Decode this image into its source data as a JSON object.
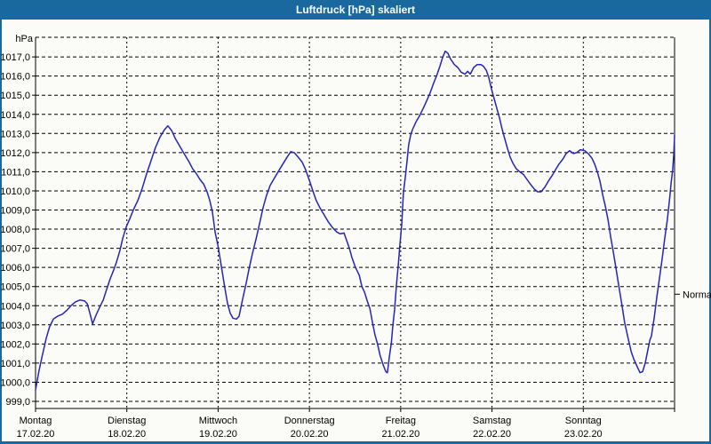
{
  "window": {
    "title": "Luftdruck [hPa] skaliert"
  },
  "colors": {
    "titlebar_bg": "#19699e",
    "window_border": "#19699e",
    "title_text": "#ffffff",
    "line": "#2424be",
    "grid": "#000000",
    "text": "#000000",
    "bg": "#fbfbf7"
  },
  "chart_data": {
    "type": "line",
    "title": "Luftdruck [hPa] skaliert",
    "ylabel": "hPa",
    "xlabel": "",
    "grid": true,
    "legend_position": "none",
    "y_axis": {
      "min": 999.0,
      "max": 1017.0,
      "step": 1.0,
      "tick_labels": [
        "999,0",
        "1000,0",
        "1001,0",
        "1002,0",
        "1003,0",
        "1004,0",
        "1005,0",
        "1006,0",
        "1007,0",
        "1008,0",
        "1009,0",
        "1010,0",
        "1011,0",
        "1012,0",
        "1013,0",
        "1014,0",
        "1015,0",
        "1016,0",
        "1017,0"
      ]
    },
    "x_axis": {
      "total_hours": 168,
      "hours_per_day": 24,
      "days": [
        {
          "name": "Montag",
          "date": "17.02.20"
        },
        {
          "name": "Dienstag",
          "date": "18.02.20"
        },
        {
          "name": "Mittwoch",
          "date": "19.02.20"
        },
        {
          "name": "Donnerstag",
          "date": "20.02.20"
        },
        {
          "name": "Freitag",
          "date": "21.02.20"
        },
        {
          "name": "Samstag",
          "date": "22.02.20"
        },
        {
          "name": "Sonntag",
          "date": "23.02.20"
        }
      ]
    },
    "normal_marker": {
      "label": "Normal",
      "value_hpa": 1004.6
    },
    "series": [
      {
        "name": "Luftdruck",
        "unit": "hPa",
        "points": [
          [
            0,
            999.6
          ],
          [
            0.9,
            1000.6
          ],
          [
            1.9,
            1001.5
          ],
          [
            2.8,
            1002.3
          ],
          [
            3.7,
            1002.9
          ],
          [
            4.7,
            1003.3
          ],
          [
            5.8,
            1003.45
          ],
          [
            7,
            1003.55
          ],
          [
            8.2,
            1003.75
          ],
          [
            9.3,
            1004
          ],
          [
            10.5,
            1004.2
          ],
          [
            11.7,
            1004.3
          ],
          [
            12.9,
            1004.25
          ],
          [
            13.6,
            1004.1
          ],
          [
            14.3,
            1003.6
          ],
          [
            15,
            1003.05
          ],
          [
            15.9,
            1003.5
          ],
          [
            16.8,
            1003.9
          ],
          [
            17.8,
            1004.3
          ],
          [
            18.7,
            1004.85
          ],
          [
            19.6,
            1005.4
          ],
          [
            20.6,
            1005.9
          ],
          [
            21.3,
            1006.3
          ],
          [
            22.2,
            1006.9
          ],
          [
            22.9,
            1007.5
          ],
          [
            23.8,
            1008.1
          ],
          [
            24.8,
            1008.55
          ],
          [
            25.7,
            1009
          ],
          [
            26.9,
            1009.5
          ],
          [
            28,
            1010.1
          ],
          [
            29.2,
            1010.9
          ],
          [
            30.4,
            1011.6
          ],
          [
            31.5,
            1012.25
          ],
          [
            32.7,
            1012.8
          ],
          [
            33.9,
            1013.2
          ],
          [
            34.8,
            1013.4
          ],
          [
            35.8,
            1013.15
          ],
          [
            36.7,
            1012.75
          ],
          [
            37.6,
            1012.45
          ],
          [
            38.6,
            1012.1
          ],
          [
            39.5,
            1011.8
          ],
          [
            40.4,
            1011.5
          ],
          [
            41.3,
            1011.15
          ],
          [
            42.3,
            1010.9
          ],
          [
            43.2,
            1010.6
          ],
          [
            44.2,
            1010.35
          ],
          [
            45.1,
            1009.95
          ],
          [
            45.8,
            1009.5
          ],
          [
            46.5,
            1008.9
          ],
          [
            47.2,
            1007.85
          ],
          [
            48,
            1007.1
          ],
          [
            48.8,
            1006.1
          ],
          [
            49.8,
            1004.9
          ],
          [
            50.5,
            1004.1
          ],
          [
            51.2,
            1003.6
          ],
          [
            51.9,
            1003.35
          ],
          [
            52.8,
            1003.3
          ],
          [
            53.5,
            1003.45
          ],
          [
            54.4,
            1004.3
          ],
          [
            55.4,
            1005.2
          ],
          [
            56.1,
            1005.9
          ],
          [
            57,
            1006.7
          ],
          [
            58,
            1007.5
          ],
          [
            58.9,
            1008.3
          ],
          [
            59.8,
            1009.1
          ],
          [
            60.7,
            1009.75
          ],
          [
            61.7,
            1010.3
          ],
          [
            62.6,
            1010.6
          ],
          [
            63.8,
            1011
          ],
          [
            65,
            1011.4
          ],
          [
            66.1,
            1011.75
          ],
          [
            67.1,
            1012.05
          ],
          [
            68,
            1012
          ],
          [
            68.9,
            1011.8
          ],
          [
            70.1,
            1011.5
          ],
          [
            71,
            1011.1
          ],
          [
            72,
            1010.55
          ],
          [
            72.9,
            1010
          ],
          [
            73.8,
            1009.5
          ],
          [
            74.8,
            1009.1
          ],
          [
            75.7,
            1008.8
          ],
          [
            76.9,
            1008.4
          ],
          [
            78,
            1008.1
          ],
          [
            79.2,
            1007.85
          ],
          [
            80.1,
            1007.75
          ],
          [
            81.1,
            1007.8
          ],
          [
            81.8,
            1007.4
          ],
          [
            82.5,
            1007
          ],
          [
            83.2,
            1006.5
          ],
          [
            84.1,
            1006
          ],
          [
            85.1,
            1005.6
          ],
          [
            85.8,
            1005
          ],
          [
            86.5,
            1004.7
          ],
          [
            87.2,
            1004.25
          ],
          [
            87.9,
            1003.85
          ],
          [
            88.6,
            1003.1
          ],
          [
            89.2,
            1002.5
          ],
          [
            89.9,
            1002
          ],
          [
            90.6,
            1001.4
          ],
          [
            91.4,
            1000.9
          ],
          [
            92.1,
            1000.55
          ],
          [
            92.5,
            1000.5
          ],
          [
            93,
            1001.3
          ],
          [
            93.5,
            1002
          ],
          [
            93.9,
            1002.9
          ],
          [
            94.4,
            1003.8
          ],
          [
            94.9,
            1005.1
          ],
          [
            95.3,
            1006
          ],
          [
            95.8,
            1007.2
          ],
          [
            96.3,
            1008.3
          ],
          [
            96.7,
            1009.9
          ],
          [
            97.2,
            1010.7
          ],
          [
            97.7,
            1011.6
          ],
          [
            98.1,
            1012.4
          ],
          [
            98.6,
            1012.9
          ],
          [
            99.1,
            1013.2
          ],
          [
            100,
            1013.6
          ],
          [
            100.9,
            1013.9
          ],
          [
            101.9,
            1014.3
          ],
          [
            102.8,
            1014.7
          ],
          [
            103.7,
            1015.1
          ],
          [
            104.6,
            1015.6
          ],
          [
            105.6,
            1016.1
          ],
          [
            106.3,
            1016.5
          ],
          [
            107,
            1016.95
          ],
          [
            107.7,
            1017.3
          ],
          [
            108.4,
            1017.2
          ],
          [
            109.1,
            1016.9
          ],
          [
            110.1,
            1016.6
          ],
          [
            111,
            1016.45
          ],
          [
            111.9,
            1016.2
          ],
          [
            112.9,
            1016.1
          ],
          [
            113.6,
            1016.25
          ],
          [
            114.3,
            1016.1
          ],
          [
            115.2,
            1016.45
          ],
          [
            116.1,
            1016.6
          ],
          [
            117.1,
            1016.6
          ],
          [
            117.8,
            1016.5
          ],
          [
            118.5,
            1016.3
          ],
          [
            119.2,
            1015.9
          ],
          [
            119.9,
            1015.3
          ],
          [
            120.6,
            1014.8
          ],
          [
            121.3,
            1014.3
          ],
          [
            122,
            1013.8
          ],
          [
            122.7,
            1013.2
          ],
          [
            123.4,
            1012.7
          ],
          [
            124.1,
            1012.2
          ],
          [
            124.8,
            1011.75
          ],
          [
            125.5,
            1011.45
          ],
          [
            126.4,
            1011.15
          ],
          [
            127.3,
            1011
          ],
          [
            128.3,
            1010.85
          ],
          [
            129.2,
            1010.6
          ],
          [
            130.1,
            1010.35
          ],
          [
            131.1,
            1010.1
          ],
          [
            132,
            1009.95
          ],
          [
            132.9,
            1009.95
          ],
          [
            133.9,
            1010.2
          ],
          [
            134.8,
            1010.5
          ],
          [
            135.8,
            1010.8
          ],
          [
            136.7,
            1011.1
          ],
          [
            137.6,
            1011.4
          ],
          [
            138.6,
            1011.65
          ],
          [
            139.5,
            1011.95
          ],
          [
            140.4,
            1012.1
          ],
          [
            141.4,
            1011.95
          ],
          [
            142.3,
            1012
          ],
          [
            143.2,
            1012.15
          ],
          [
            144.4,
            1012.1
          ],
          [
            145.3,
            1011.95
          ],
          [
            146.3,
            1011.7
          ],
          [
            147,
            1011.4
          ],
          [
            147.7,
            1011
          ],
          [
            148.4,
            1010.5
          ],
          [
            149.1,
            1009.8
          ],
          [
            149.8,
            1009.2
          ],
          [
            150.5,
            1008.5
          ],
          [
            151.2,
            1007.6
          ],
          [
            151.9,
            1006.8
          ],
          [
            152.6,
            1005.95
          ],
          [
            153.5,
            1004.85
          ],
          [
            154.2,
            1004
          ],
          [
            154.9,
            1003.1
          ],
          [
            155.9,
            1002.2
          ],
          [
            156.6,
            1001.6
          ],
          [
            157.3,
            1001.2
          ],
          [
            158.2,
            1000.8
          ],
          [
            158.9,
            1000.5
          ],
          [
            159.6,
            1000.55
          ],
          [
            160.3,
            1001
          ],
          [
            161,
            1001.7
          ],
          [
            161.5,
            1002.2
          ],
          [
            161.9,
            1002.4
          ],
          [
            162.6,
            1003.3
          ],
          [
            163.3,
            1004.4
          ],
          [
            164,
            1005.4
          ],
          [
            164.7,
            1006.4
          ],
          [
            165.4,
            1007.5
          ],
          [
            166.1,
            1008.5
          ],
          [
            166.8,
            1009.8
          ],
          [
            167.1,
            1010.4
          ],
          [
            167.5,
            1011.1
          ],
          [
            167.8,
            1011.9
          ],
          [
            168,
            1012.9
          ]
        ]
      }
    ]
  }
}
